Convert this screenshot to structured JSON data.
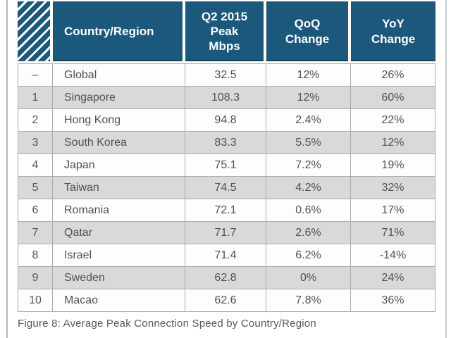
{
  "page": {
    "colors": {
      "header_blue": "#1b587c",
      "row_alt_gray": "#d9d9d9",
      "row_white": "#fdfdfd",
      "grid_line": "#a7adb1",
      "body_text": "#4f5254"
    }
  },
  "table": {
    "columns": [
      {
        "key": "rank",
        "label": ""
      },
      {
        "key": "country",
        "label": "Country/Region"
      },
      {
        "key": "mbps",
        "label": "Q2 2015\nPeak\nMbps"
      },
      {
        "key": "qoq",
        "label": "QoQ\nChange"
      },
      {
        "key": "yoy",
        "label": "YoY\nChange"
      }
    ],
    "rows": [
      {
        "rank": "–",
        "country": "Global",
        "mbps": "32.5",
        "qoq": "12%",
        "yoy": "26%"
      },
      {
        "rank": "1",
        "country": "Singapore",
        "mbps": "108.3",
        "qoq": "12%",
        "yoy": "60%"
      },
      {
        "rank": "2",
        "country": "Hong Kong",
        "mbps": "94.8",
        "qoq": "2.4%",
        "yoy": "22%"
      },
      {
        "rank": "3",
        "country": "South Korea",
        "mbps": "83.3",
        "qoq": "5.5%",
        "yoy": "12%"
      },
      {
        "rank": "4",
        "country": "Japan",
        "mbps": "75.1",
        "qoq": "7.2%",
        "yoy": "19%"
      },
      {
        "rank": "5",
        "country": "Taiwan",
        "mbps": "74.5",
        "qoq": "4.2%",
        "yoy": "32%"
      },
      {
        "rank": "6",
        "country": "Romania",
        "mbps": "72.1",
        "qoq": "0.6%",
        "yoy": "17%"
      },
      {
        "rank": "7",
        "country": "Qatar",
        "mbps": "71.7",
        "qoq": "2.6%",
        "yoy": "71%"
      },
      {
        "rank": "8",
        "country": "Israel",
        "mbps": "71.4",
        "qoq": "6.2%",
        "yoy": "-14%"
      },
      {
        "rank": "9",
        "country": "Sweden",
        "mbps": "62.8",
        "qoq": "0%",
        "yoy": "24%"
      },
      {
        "rank": "10",
        "country": "Macao",
        "mbps": "62.6",
        "qoq": "7.8%",
        "yoy": "36%"
      }
    ]
  },
  "caption": "Figure 8: Average Peak Connection Speed by Country/Region"
}
